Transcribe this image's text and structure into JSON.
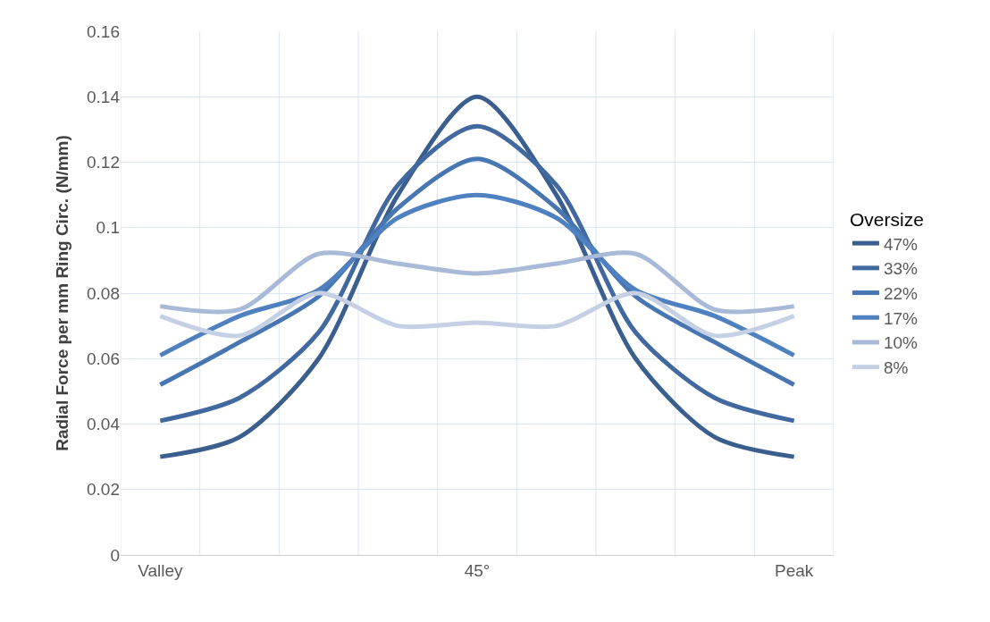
{
  "chart_data": {
    "type": "line",
    "ylabel": "Radial Force per mm Ring Circ. (N/mm)",
    "legend_title": "Oversize",
    "categories": [
      "Valley",
      null,
      null,
      null,
      "45°",
      null,
      null,
      null,
      "Peak"
    ],
    "series": [
      {
        "name": "47%",
        "color": "#3a5f8e",
        "values": [
          0.03,
          0.036,
          0.06,
          0.11,
          0.14,
          0.11,
          0.06,
          0.036,
          0.03
        ]
      },
      {
        "name": "33%",
        "color": "#41689f",
        "values": [
          0.041,
          0.048,
          0.068,
          0.113,
          0.131,
          0.113,
          0.068,
          0.048,
          0.041
        ]
      },
      {
        "name": "22%",
        "color": "#4876b2",
        "values": [
          0.052,
          0.065,
          0.079,
          0.106,
          0.121,
          0.106,
          0.079,
          0.065,
          0.052
        ]
      },
      {
        "name": "17%",
        "color": "#4f81c0",
        "values": [
          0.061,
          0.073,
          0.081,
          0.103,
          0.11,
          0.103,
          0.081,
          0.073,
          0.061
        ]
      },
      {
        "name": "10%",
        "color": "#a9b9d8",
        "values": [
          0.076,
          0.075,
          0.092,
          0.089,
          0.086,
          0.089,
          0.092,
          0.075,
          0.076
        ]
      },
      {
        "name": "8%",
        "color": "#c6d0e4",
        "values": [
          0.073,
          0.067,
          0.08,
          0.07,
          0.071,
          0.07,
          0.08,
          0.067,
          0.073
        ]
      }
    ],
    "ylim": [
      0,
      0.16
    ],
    "yticks": [
      0,
      0.02,
      0.04,
      0.06,
      0.08,
      0.1,
      0.12,
      0.14,
      0.16
    ],
    "grid": true,
    "legend": "right",
    "line_style": "solid",
    "marker": "none"
  }
}
